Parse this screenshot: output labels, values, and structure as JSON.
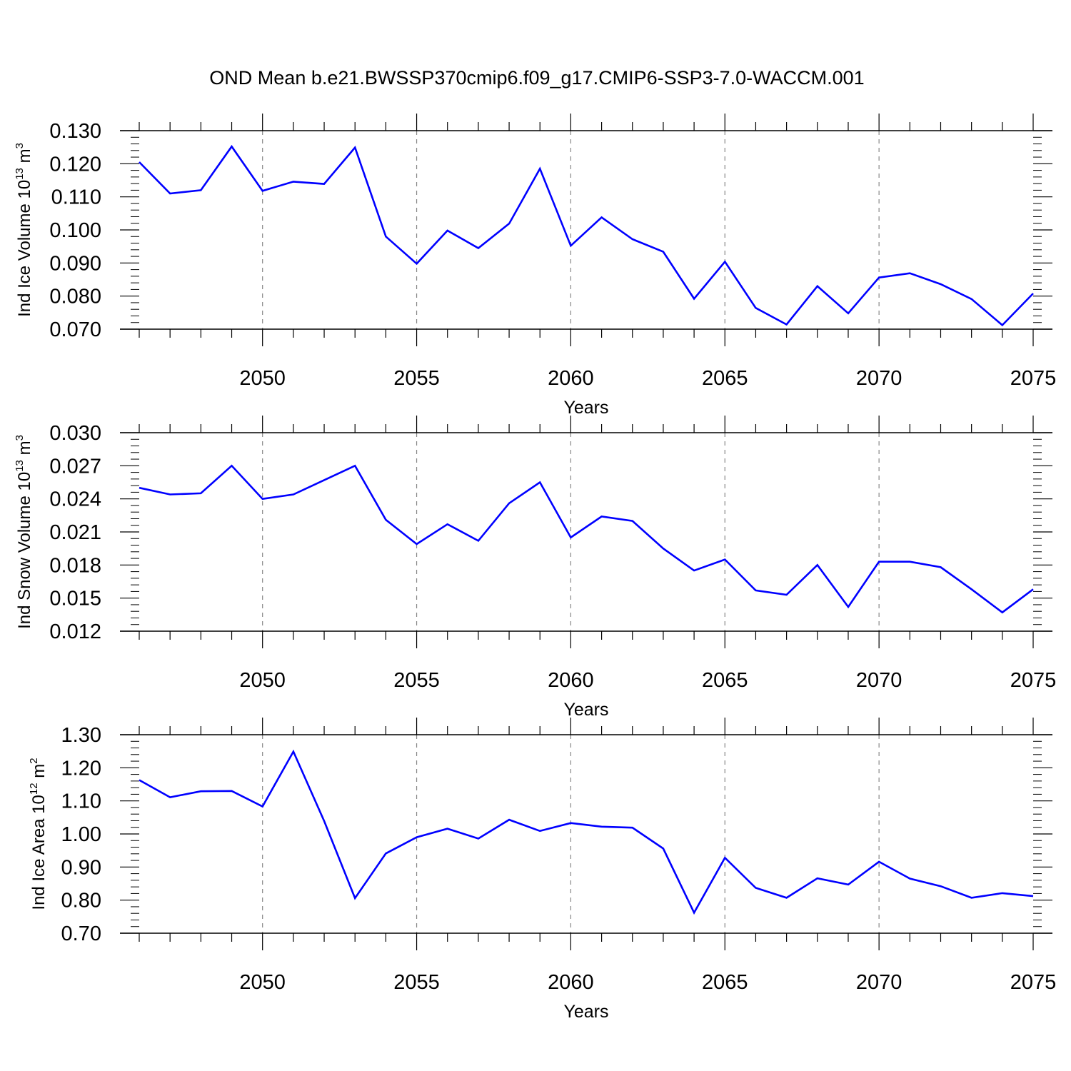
{
  "title": "OND Mean b.e21.BWSSP370cmip6.f09_g17.CMIP6-SSP3-7.0-WACCM.001",
  "chart_data": [
    {
      "type": "line",
      "ylabel": {
        "text": "Ind Ice Volume 10",
        "exp": "13",
        "unit": " m",
        "unit_exp": "3"
      },
      "xlabel": "Years",
      "xlim": [
        2046,
        2075
      ],
      "ylim": [
        0.07,
        0.13
      ],
      "yticks": [
        "0.070",
        "0.080",
        "0.090",
        "0.100",
        "0.110",
        "0.120",
        "0.130"
      ],
      "xticks": [
        "2050",
        "2055",
        "2060",
        "2065",
        "2070",
        "2075"
      ],
      "grid_x": true,
      "color": "#0000ff",
      "x": [
        2046,
        2047,
        2048,
        2049,
        2050,
        2051,
        2052,
        2053,
        2054,
        2055,
        2056,
        2057,
        2058,
        2059,
        2060,
        2061,
        2062,
        2063,
        2064,
        2065,
        2066,
        2067,
        2068,
        2069,
        2070,
        2071,
        2072,
        2073,
        2074,
        2075
      ],
      "values": [
        0.1205,
        0.111,
        0.112,
        0.1252,
        0.1118,
        0.1146,
        0.1139,
        0.1249,
        0.098,
        0.0898,
        0.0998,
        0.0945,
        0.1019,
        0.1185,
        0.0952,
        0.1038,
        0.0972,
        0.0934,
        0.0792,
        0.0904,
        0.0764,
        0.0714,
        0.083,
        0.0748,
        0.0856,
        0.0869,
        0.0836,
        0.0791,
        0.0712,
        0.0808
      ]
    },
    {
      "type": "line",
      "ylabel": {
        "text": "Ind Snow Volume 10",
        "exp": "13",
        "unit": " m",
        "unit_exp": "3"
      },
      "xlabel": "Years",
      "xlim": [
        2046,
        2075
      ],
      "ylim": [
        0.012,
        0.03
      ],
      "yticks": [
        "0.012",
        "0.015",
        "0.018",
        "0.021",
        "0.024",
        "0.027",
        "0.030"
      ],
      "xticks": [
        "2050",
        "2055",
        "2060",
        "2065",
        "2070",
        "2075"
      ],
      "grid_x": true,
      "color": "#0000ff",
      "x": [
        2046,
        2047,
        2048,
        2049,
        2050,
        2051,
        2052,
        2053,
        2054,
        2055,
        2056,
        2057,
        2058,
        2059,
        2060,
        2061,
        2062,
        2063,
        2064,
        2065,
        2066,
        2067,
        2068,
        2069,
        2070,
        2071,
        2072,
        2073,
        2074,
        2075
      ],
      "values": [
        0.025,
        0.0244,
        0.0245,
        0.027,
        0.024,
        0.0244,
        0.0257,
        0.027,
        0.0221,
        0.0199,
        0.0217,
        0.0202,
        0.0236,
        0.0255,
        0.0205,
        0.0224,
        0.022,
        0.0195,
        0.0175,
        0.0185,
        0.0157,
        0.0153,
        0.018,
        0.0142,
        0.0183,
        0.0183,
        0.0178,
        0.0158,
        0.0137,
        0.0158
      ]
    },
    {
      "type": "line",
      "ylabel": {
        "text": "Ind Ice Area 10",
        "exp": "12",
        "unit": " m",
        "unit_exp": "2"
      },
      "xlabel": "Years",
      "xlim": [
        2046,
        2075
      ],
      "ylim": [
        0.7,
        1.3
      ],
      "yticks": [
        "0.70",
        "0.80",
        "0.90",
        "1.00",
        "1.10",
        "1.20",
        "1.30"
      ],
      "xticks": [
        "2050",
        "2055",
        "2060",
        "2065",
        "2070",
        "2075"
      ],
      "grid_x": true,
      "color": "#0000ff",
      "x": [
        2046,
        2047,
        2048,
        2049,
        2050,
        2051,
        2052,
        2053,
        2054,
        2055,
        2056,
        2057,
        2058,
        2059,
        2060,
        2061,
        2062,
        2063,
        2064,
        2065,
        2066,
        2067,
        2068,
        2069,
        2070,
        2071,
        2072,
        2073,
        2074,
        2075
      ],
      "values": [
        1.163,
        1.111,
        1.129,
        1.13,
        1.083,
        1.249,
        1.039,
        0.806,
        0.941,
        0.99,
        1.016,
        0.986,
        1.043,
        1.009,
        1.033,
        1.022,
        1.019,
        0.956,
        0.762,
        0.928,
        0.837,
        0.807,
        0.866,
        0.847,
        0.916,
        0.865,
        0.842,
        0.807,
        0.821,
        0.812
      ]
    }
  ]
}
